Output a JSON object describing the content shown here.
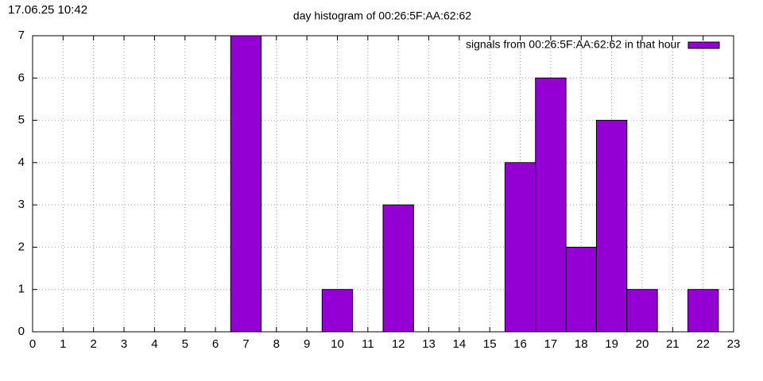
{
  "chart_data": {
    "type": "bar",
    "timestamp": "17.06.25 10:42",
    "title": "day histogram of 00:26:5F:AA:62:62",
    "series": [
      {
        "name": "signals from 00:26:5F:AA:62:62 in that hour",
        "color": "#9400d3",
        "x": [
          7,
          10,
          12,
          16,
          17,
          18,
          19,
          20,
          22
        ],
        "values": [
          7,
          1,
          3,
          4,
          6,
          2,
          5,
          1,
          1
        ]
      }
    ],
    "xlim": [
      0,
      23
    ],
    "xticks": [
      0,
      1,
      2,
      3,
      4,
      5,
      6,
      7,
      8,
      9,
      10,
      11,
      12,
      13,
      14,
      15,
      16,
      17,
      18,
      19,
      20,
      21,
      22,
      23
    ],
    "ylim": [
      0,
      7
    ],
    "yticks": [
      0,
      1,
      2,
      3,
      4,
      5,
      6,
      7
    ],
    "grid": true,
    "legend": "top-right"
  }
}
